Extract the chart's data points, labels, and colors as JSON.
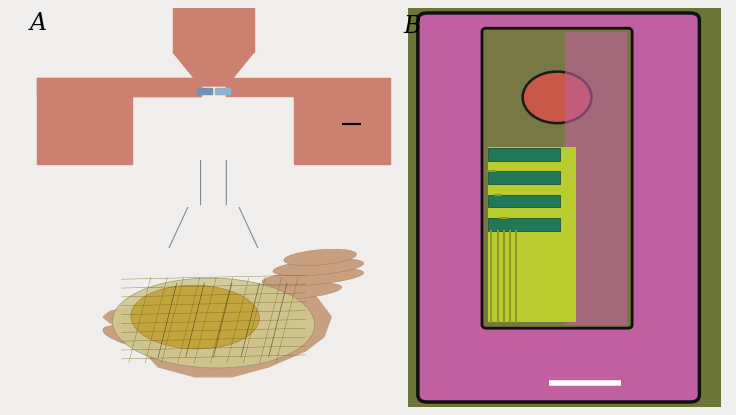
{
  "bg_color": "#f0eeec",
  "transistor_color": "#cc8070",
  "channel_color_left": "#7090b8",
  "channel_color_right": "#90b0cc",
  "panel_B_outer_bg": "#6b7535",
  "panel_B_pink": "#c060a0",
  "panel_B_inner_khaki": "#787845",
  "panel_B_circle_fill": "#c85848",
  "panel_B_circle_edge": "#1a1a1a",
  "panel_B_track_yellow": "#b8cc30",
  "panel_B_track_dark": "#909820",
  "panel_B_teal": "#207858",
  "panel_B_edge": "#111111",
  "white_scale": "#ffffff",
  "hand_skin": "#c8a080",
  "hand_dark": "#a07858",
  "device_gold": "#c0a030",
  "device_silver": "#d0c890",
  "pointer_color": "#888888"
}
